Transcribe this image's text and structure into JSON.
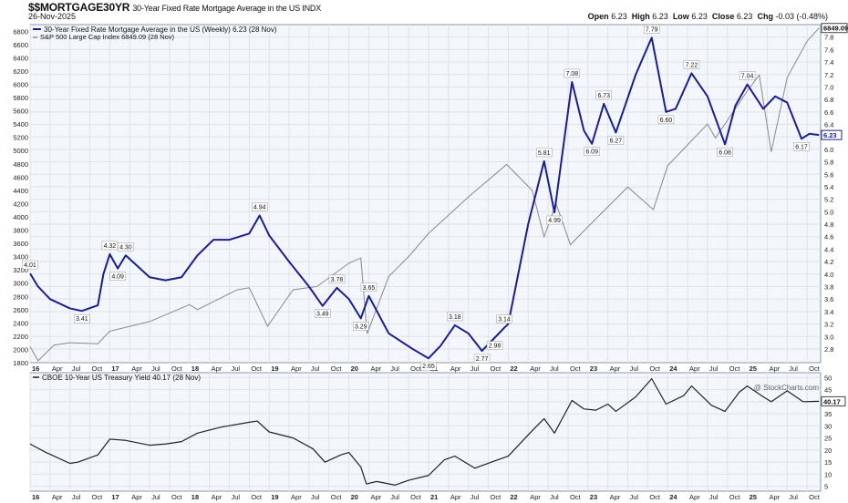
{
  "header": {
    "symbol": "$$MORTGAGE30YR",
    "description": "30-Year Fixed Rate Mortgage Average in the US INDX",
    "date": "26-Nov-2025",
    "open_label": "Open",
    "open": "6.23",
    "high_label": "High",
    "high": "6.23",
    "low_label": "Low",
    "low": "6.23",
    "close_label": "Close",
    "close": "6.23",
    "chg_label": "Chg",
    "chg": "-0.03 (-0.48%)",
    "watermark": "@ StockCharts.com"
  },
  "colors": {
    "mortgage": "#1a1f8c",
    "spx": "#8a8a8a",
    "treasury": "#222222",
    "grid": "#dde3ea",
    "panel_bg": "#f3f6fa"
  },
  "chart_data": [
    {
      "type": "line",
      "panel": "main",
      "legend": [
        "30-Year Fixed Rate Mortgage Average in the US (Weekly) 6.23 (28 Nov)",
        "S&P 500 Large Cap Index 6849.09 (28 Nov)"
      ],
      "x_ticks": [
        "16",
        "Apr",
        "Jul",
        "Oct",
        "17",
        "Apr",
        "Jul",
        "Oct",
        "18",
        "Apr",
        "Jul",
        "Oct",
        "19",
        "Apr",
        "Jul",
        "Oct",
        "20",
        "Apr",
        "Jul",
        "Oct",
        "21",
        "Apr",
        "Jul",
        "Oct",
        "22",
        "Apr",
        "Jul",
        "Oct",
        "23",
        "Apr",
        "Jul",
        "Oct",
        "24",
        "Apr",
        "Jul",
        "Oct",
        "25",
        "Apr",
        "Jul",
        "Oct"
      ],
      "y_left_ticks": [
        "6800",
        "6600",
        "6400",
        "6200",
        "6000",
        "5800",
        "5600",
        "5400",
        "5200",
        "5000",
        "4800",
        "4600",
        "4400",
        "4200",
        "4000",
        "3800",
        "3600",
        "3400",
        "3200",
        "3000",
        "2800",
        "2600",
        "2400",
        "2200",
        "2000",
        "1800"
      ],
      "y_left_range": [
        1800,
        6900
      ],
      "y_right_ticks": [
        "7.8",
        "7.6",
        "7.4",
        "7.2",
        "7.0",
        "6.8",
        "6.6",
        "6.4",
        "6.2",
        "6.0",
        "5.8",
        "5.6",
        "5.4",
        "5.2",
        "5.0",
        "4.8",
        "4.6",
        "4.4",
        "4.2",
        "4.0",
        "3.8",
        "3.6",
        "3.4",
        "3.2",
        "3.0",
        "2.8"
      ],
      "y_right_range": [
        2.58,
        8.0
      ],
      "series": [
        {
          "name": "30-Year Fixed Rate Mortgage Average in the US",
          "axis": "right",
          "points": [
            [
              2016.0,
              4.01
            ],
            [
              2016.1,
              3.8
            ],
            [
              2016.25,
              3.6
            ],
            [
              2016.5,
              3.45
            ],
            [
              2016.65,
              3.41
            ],
            [
              2016.85,
              3.5
            ],
            [
              2016.92,
              4.0
            ],
            [
              2017.0,
              4.32
            ],
            [
              2017.1,
              4.09
            ],
            [
              2017.2,
              4.3
            ],
            [
              2017.5,
              3.95
            ],
            [
              2017.7,
              3.9
            ],
            [
              2017.9,
              3.95
            ],
            [
              2018.1,
              4.3
            ],
            [
              2018.3,
              4.55
            ],
            [
              2018.5,
              4.55
            ],
            [
              2018.75,
              4.65
            ],
            [
              2018.88,
              4.94
            ],
            [
              2019.0,
              4.62
            ],
            [
              2019.25,
              4.2
            ],
            [
              2019.5,
              3.8
            ],
            [
              2019.67,
              3.49
            ],
            [
              2019.85,
              3.78
            ],
            [
              2020.0,
              3.6
            ],
            [
              2020.15,
              3.29
            ],
            [
              2020.25,
              3.65
            ],
            [
              2020.5,
              3.05
            ],
            [
              2020.8,
              2.8
            ],
            [
              2021.0,
              2.65
            ],
            [
              2021.15,
              2.85
            ],
            [
              2021.33,
              3.18
            ],
            [
              2021.5,
              3.05
            ],
            [
              2021.67,
              2.77
            ],
            [
              2021.83,
              2.98
            ],
            [
              2021.95,
              3.14
            ],
            [
              2022.0,
              3.2
            ],
            [
              2022.25,
              4.8
            ],
            [
              2022.45,
              5.81
            ],
            [
              2022.58,
              4.99
            ],
            [
              2022.8,
              7.08
            ],
            [
              2022.95,
              6.3
            ],
            [
              2023.05,
              6.09
            ],
            [
              2023.2,
              6.73
            ],
            [
              2023.35,
              6.27
            ],
            [
              2023.6,
              7.2
            ],
            [
              2023.8,
              7.79
            ],
            [
              2023.98,
              6.6
            ],
            [
              2024.1,
              6.65
            ],
            [
              2024.3,
              7.22
            ],
            [
              2024.5,
              6.85
            ],
            [
              2024.72,
              6.08
            ],
            [
              2024.85,
              6.7
            ],
            [
              2025.0,
              7.04
            ],
            [
              2025.2,
              6.65
            ],
            [
              2025.35,
              6.85
            ],
            [
              2025.5,
              6.75
            ],
            [
              2025.68,
              6.17
            ],
            [
              2025.78,
              6.25
            ],
            [
              2025.9,
              6.23
            ]
          ]
        },
        {
          "name": "S&P 500 Large Cap Index",
          "axis": "left",
          "points": [
            [
              2016.0,
              2043
            ],
            [
              2016.1,
              1829
            ],
            [
              2016.3,
              2065
            ],
            [
              2016.5,
              2100
            ],
            [
              2016.85,
              2085
            ],
            [
              2017.0,
              2275
            ],
            [
              2017.5,
              2420
            ],
            [
              2018.0,
              2675
            ],
            [
              2018.1,
              2600
            ],
            [
              2018.6,
              2900
            ],
            [
              2018.75,
              2930
            ],
            [
              2018.98,
              2350
            ],
            [
              2019.3,
              2900
            ],
            [
              2019.6,
              2950
            ],
            [
              2020.0,
              3300
            ],
            [
              2020.15,
              3380
            ],
            [
              2020.23,
              2237
            ],
            [
              2020.5,
              3100
            ],
            [
              2020.75,
              3400
            ],
            [
              2021.0,
              3750
            ],
            [
              2021.5,
              4300
            ],
            [
              2021.98,
              4790
            ],
            [
              2022.3,
              4400
            ],
            [
              2022.45,
              3700
            ],
            [
              2022.6,
              4200
            ],
            [
              2022.78,
              3580
            ],
            [
              2023.0,
              3850
            ],
            [
              2023.5,
              4450
            ],
            [
              2023.82,
              4110
            ],
            [
              2024.0,
              4770
            ],
            [
              2024.5,
              5400
            ],
            [
              2024.6,
              5190
            ],
            [
              2025.0,
              5900
            ],
            [
              2025.15,
              6140
            ],
            [
              2025.3,
              4980
            ],
            [
              2025.5,
              6100
            ],
            [
              2025.75,
              6650
            ],
            [
              2025.9,
              6849
            ]
          ]
        }
      ],
      "annotations": [
        {
          "x": 2016.0,
          "y": 4.01,
          "label": "4.01"
        },
        {
          "x": 2016.65,
          "y": 3.41,
          "label": "3.41"
        },
        {
          "x": 2017.0,
          "y": 4.32,
          "label": "4.32"
        },
        {
          "x": 2017.1,
          "y": 4.09,
          "label": "4.09"
        },
        {
          "x": 2017.2,
          "y": 4.3,
          "label": "4.30"
        },
        {
          "x": 2018.88,
          "y": 4.94,
          "label": "4.94"
        },
        {
          "x": 2019.67,
          "y": 3.49,
          "label": "3.49"
        },
        {
          "x": 2019.85,
          "y": 3.78,
          "label": "3.78"
        },
        {
          "x": 2020.15,
          "y": 3.29,
          "label": "3.29"
        },
        {
          "x": 2020.25,
          "y": 3.65,
          "label": "3.65"
        },
        {
          "x": 2021.0,
          "y": 2.65,
          "label": "2.65"
        },
        {
          "x": 2021.33,
          "y": 3.18,
          "label": "3.18"
        },
        {
          "x": 2021.67,
          "y": 2.77,
          "label": "2.77"
        },
        {
          "x": 2021.83,
          "y": 2.98,
          "label": "2.98"
        },
        {
          "x": 2021.95,
          "y": 3.14,
          "label": "3.14"
        },
        {
          "x": 2022.45,
          "y": 5.81,
          "label": "5.81"
        },
        {
          "x": 2022.58,
          "y": 4.99,
          "label": "4.99"
        },
        {
          "x": 2022.8,
          "y": 7.08,
          "label": "7.08"
        },
        {
          "x": 2023.05,
          "y": 6.09,
          "label": "6.09"
        },
        {
          "x": 2023.2,
          "y": 6.73,
          "label": "6.73"
        },
        {
          "x": 2023.35,
          "y": 6.27,
          "label": "6.27"
        },
        {
          "x": 2023.8,
          "y": 7.79,
          "label": "7.79"
        },
        {
          "x": 2023.98,
          "y": 6.6,
          "label": "6.60"
        },
        {
          "x": 2024.3,
          "y": 7.22,
          "label": "7.22"
        },
        {
          "x": 2024.72,
          "y": 6.08,
          "label": "6.08"
        },
        {
          "x": 2025.0,
          "y": 7.04,
          "label": "7.04"
        },
        {
          "x": 2025.68,
          "y": 6.17,
          "label": "6.17"
        }
      ],
      "last_values": [
        {
          "series": "30-Year Fixed Rate Mortgage Average in the US",
          "value": "6.23"
        },
        {
          "series": "S&P 500 Large Cap Index",
          "value": "6849.09"
        }
      ]
    },
    {
      "type": "line",
      "panel": "lower",
      "legend": [
        "CBOE 10-Year US Treasury Yield 40.17 (28 Nov)"
      ],
      "x_ticks": [
        "16",
        "Apr",
        "Jul",
        "Oct",
        "17",
        "Apr",
        "Jul",
        "Oct",
        "18",
        "Apr",
        "Jul",
        "Oct",
        "19",
        "Apr",
        "Jul",
        "Oct",
        "20",
        "Apr",
        "Jul",
        "Oct",
        "21",
        "Apr",
        "Jul",
        "Oct",
        "22",
        "Apr",
        "Jul",
        "Oct",
        "23",
        "Apr",
        "Jul",
        "Oct",
        "24",
        "Apr",
        "Jul",
        "Oct",
        "25",
        "Apr",
        "Jul",
        "Oct"
      ],
      "y_right_ticks": [
        "50",
        "45",
        "40",
        "35",
        "30",
        "25",
        "20",
        "15",
        "10",
        "5"
      ],
      "y_right_range": [
        3,
        52
      ],
      "series": [
        {
          "name": "CBOE 10-Year US Treasury Yield",
          "axis": "right",
          "points": [
            [
              2016.0,
              22.5
            ],
            [
              2016.2,
              19.0
            ],
            [
              2016.5,
              14.5
            ],
            [
              2016.6,
              15.0
            ],
            [
              2016.85,
              18.0
            ],
            [
              2017.0,
              24.5
            ],
            [
              2017.2,
              24.0
            ],
            [
              2017.5,
              22.0
            ],
            [
              2017.7,
              22.5
            ],
            [
              2017.9,
              23.5
            ],
            [
              2018.1,
              27.0
            ],
            [
              2018.4,
              29.5
            ],
            [
              2018.75,
              31.5
            ],
            [
              2018.85,
              32.0
            ],
            [
              2019.0,
              27.5
            ],
            [
              2019.3,
              25.0
            ],
            [
              2019.55,
              20.5
            ],
            [
              2019.7,
              15.0
            ],
            [
              2019.9,
              18.0
            ],
            [
              2020.0,
              19.0
            ],
            [
              2020.15,
              13.0
            ],
            [
              2020.22,
              6.0
            ],
            [
              2020.35,
              7.0
            ],
            [
              2020.58,
              5.5
            ],
            [
              2020.75,
              7.5
            ],
            [
              2021.0,
              9.5
            ],
            [
              2021.2,
              16.0
            ],
            [
              2021.33,
              17.5
            ],
            [
              2021.58,
              12.5
            ],
            [
              2021.83,
              15.5
            ],
            [
              2022.0,
              17.5
            ],
            [
              2022.3,
              28.0
            ],
            [
              2022.45,
              33.0
            ],
            [
              2022.58,
              27.0
            ],
            [
              2022.8,
              40.5
            ],
            [
              2022.95,
              37.0
            ],
            [
              2023.1,
              36.5
            ],
            [
              2023.25,
              39.0
            ],
            [
              2023.35,
              36.0
            ],
            [
              2023.6,
              42.0
            ],
            [
              2023.8,
              49.5
            ],
            [
              2023.98,
              39.0
            ],
            [
              2024.2,
              42.5
            ],
            [
              2024.3,
              46.5
            ],
            [
              2024.55,
              38.5
            ],
            [
              2024.72,
              36.0
            ],
            [
              2024.9,
              44.0
            ],
            [
              2025.0,
              46.5
            ],
            [
              2025.2,
              42.0
            ],
            [
              2025.3,
              40.0
            ],
            [
              2025.5,
              44.5
            ],
            [
              2025.7,
              40.0
            ],
            [
              2025.9,
              40.17
            ]
          ]
        }
      ],
      "last_values": [
        {
          "series": "CBOE 10-Year US Treasury Yield",
          "value": "40.17"
        }
      ]
    }
  ]
}
